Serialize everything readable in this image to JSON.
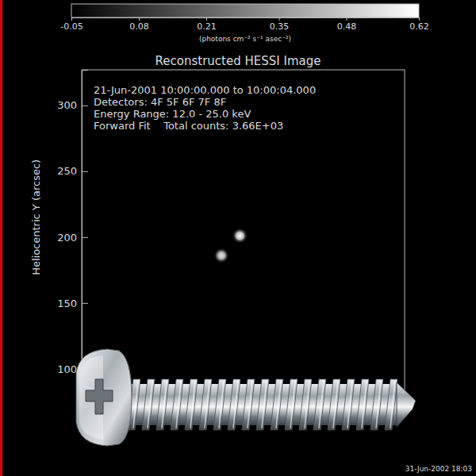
{
  "chart_data": {
    "type": "heatmap",
    "title": "Reconstructed HESSI Image",
    "y_label": "Heliocentric Y (arcsec)",
    "annotations": [
      "21-Jun-2001 10:00:00.000 to 10:00:04.000",
      "Detectors: 4F 5F 6F 7F 8F",
      "Energy Range: 12.0 - 25.0 keV",
      "Forward Fit    Total counts: 3.66E+03"
    ],
    "footer": "31-Jun-2002 18:03",
    "xlim": [
      -350,
      -105
    ],
    "ylim": [
      79,
      327
    ],
    "yticks": [
      100,
      150,
      200,
      250,
      300
    ],
    "tick_labels": "y",
    "sources": {
      "x": [
        -230,
        -244
      ],
      "y": [
        201,
        186
      ],
      "values": [
        0.62,
        0.55
      ]
    },
    "colorbar": {
      "range": [
        -0.05,
        0.62
      ],
      "ticks": [
        -0.05,
        0.08,
        0.21,
        0.35,
        0.48,
        0.62
      ],
      "label": "(photons cm⁻² s⁻¹ asec⁻²)"
    }
  }
}
